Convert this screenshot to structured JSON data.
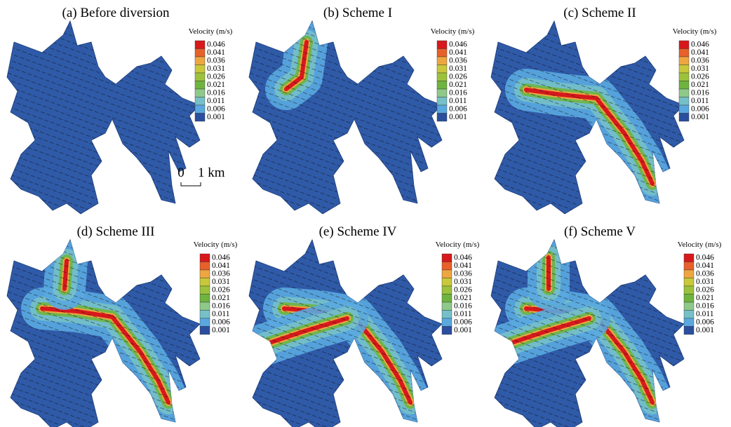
{
  "panels": [
    {
      "title": "(a) Before diversion"
    },
    {
      "title": "(b) Scheme I"
    },
    {
      "title": "(c) Scheme II"
    },
    {
      "title": "(d) Scheme III"
    },
    {
      "title": "(e) Scheme IV"
    },
    {
      "title": "(f) Scheme V"
    }
  ],
  "legend": {
    "title": "Velocity (m/s)",
    "labels": [
      "0.046",
      "0.041",
      "0.036",
      "0.031",
      "0.026",
      "0.021",
      "0.016",
      "0.011",
      "0.006",
      "0.001"
    ],
    "colors": [
      "#d7191c",
      "#e8602a",
      "#eea640",
      "#c9c83a",
      "#9cc23c",
      "#6fb43f",
      "#8ec98a",
      "#76c0c8",
      "#5aa8e0",
      "#2b4f9e"
    ]
  },
  "scale_bar": {
    "start": "0",
    "end": "1 km"
  }
}
